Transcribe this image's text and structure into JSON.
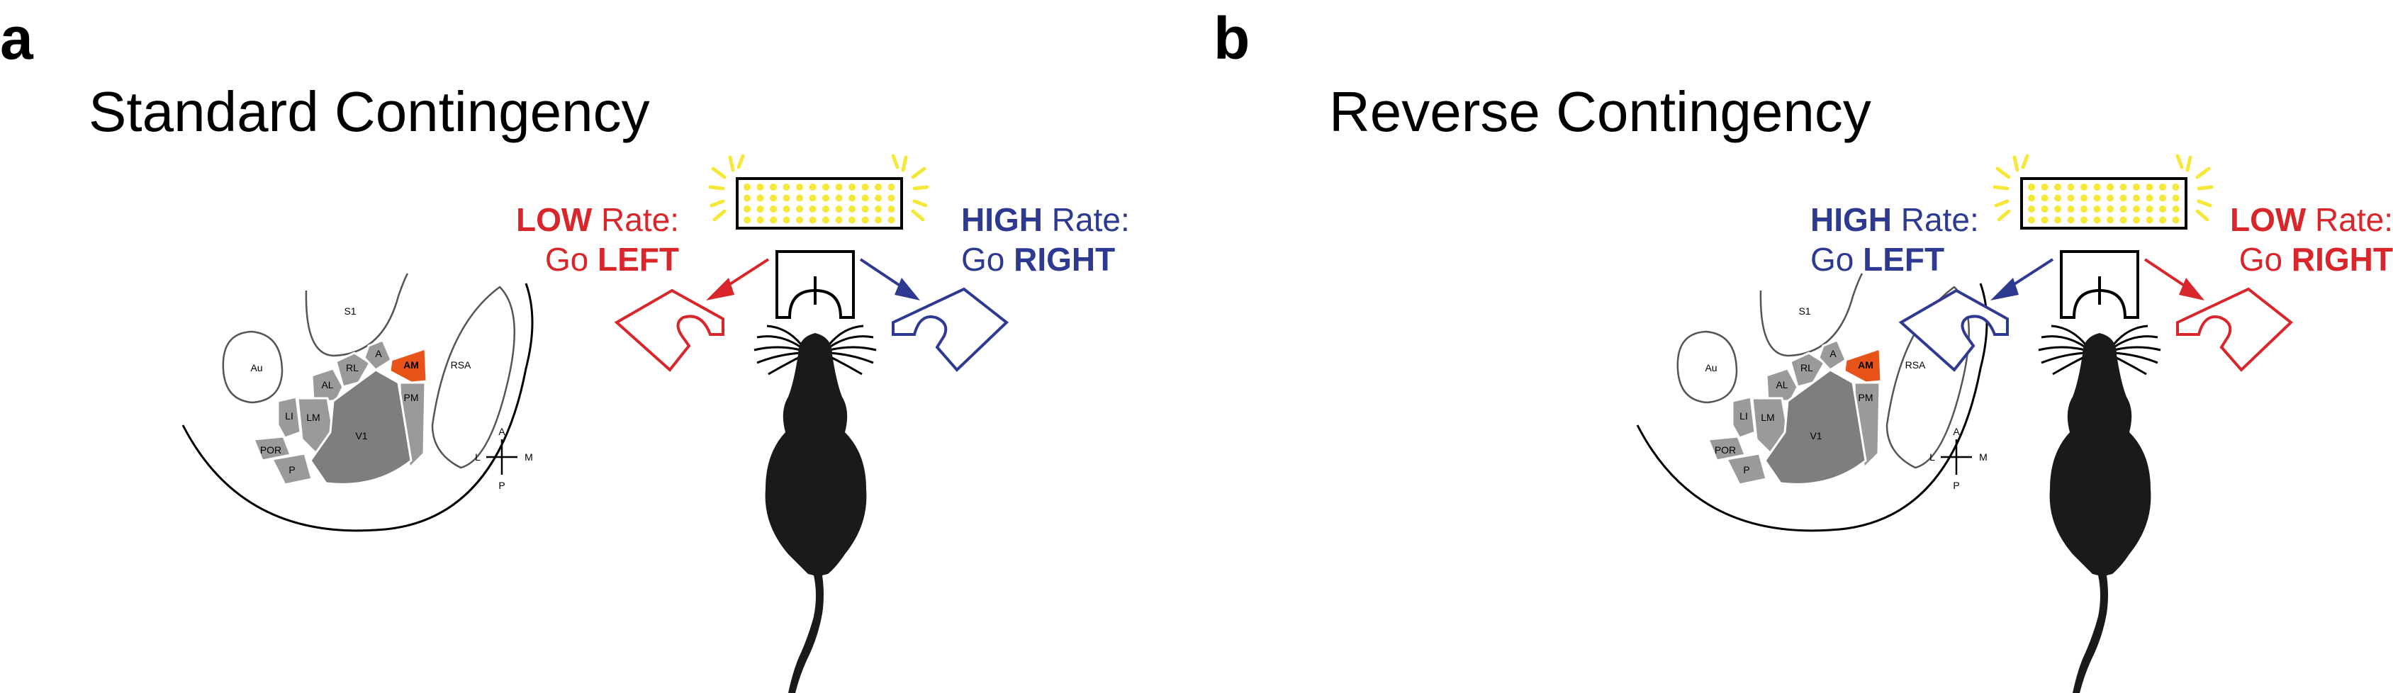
{
  "panels": [
    {
      "letter": "a",
      "title": "Standard Contingency",
      "left_port": {
        "bold1": "LOW",
        "rest1": " Rate:",
        "go": "Go ",
        "bold2": "LEFT",
        "color": "#d9262a"
      },
      "right_port": {
        "bold1": "HIGH",
        "rest1": " Rate:",
        "go": "Go ",
        "bold2": "RIGHT",
        "color": "#2e3a92"
      }
    },
    {
      "letter": "b",
      "title": "Reverse Contingency",
      "left_port": {
        "bold1": "HIGH",
        "rest1": " Rate:",
        "go": "Go ",
        "bold2": "LEFT",
        "color": "#2e3a92"
      },
      "right_port": {
        "bold1": "LOW",
        "rest1": " Rate:",
        "go": "Go ",
        "bold2": "RIGHT",
        "color": "#d9262a"
      }
    }
  ],
  "brain_map": {
    "areas": [
      "S1",
      "Au",
      "AL",
      "RL",
      "A",
      "AM",
      "PM",
      "RSA",
      "LI",
      "LM",
      "V1",
      "POR",
      "P"
    ],
    "highlighted_area": "AM",
    "highlight_color": "#e8531a",
    "compass": {
      "anterior": "A",
      "posterior": "P",
      "lateral": "L",
      "medial": "M"
    }
  },
  "colors": {
    "low_rate": "#d9262a",
    "high_rate": "#2e3a92",
    "led": "#f5e838"
  }
}
